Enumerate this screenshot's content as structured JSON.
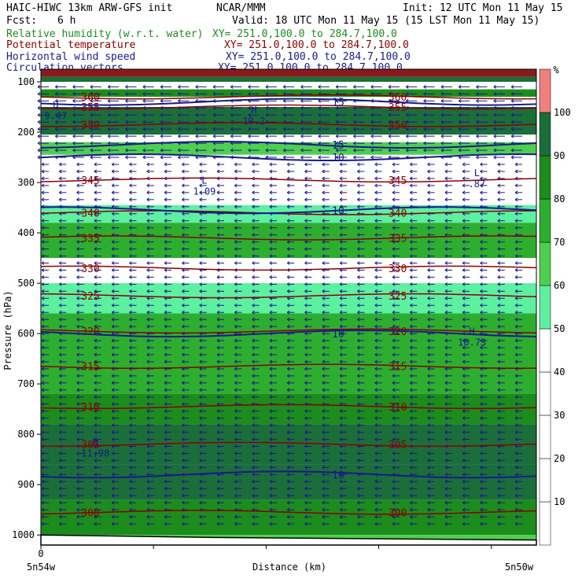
{
  "header": {
    "model_line": "HAIC-HIWC 13km ARW-GFS init",
    "org": "NCAR/MMM",
    "init": "Init: 12 UTC Mon 11 May 15",
    "fcst_label": "Fcst:",
    "fcst_value": "6 h",
    "valid": "Valid: 18 UTC Mon 11 May 15 (15 LST Mon 11 May 15)"
  },
  "fields": [
    {
      "name": "Relative humidity (w.r.t. water)",
      "xy": "XY= 251.0,100.0 to 284.7,100.0",
      "color": "#1f8c1f"
    },
    {
      "name": "Potential temperature",
      "xy": "XY= 251.0,100.0 to 284.7,100.0",
      "color": "#8b0000"
    },
    {
      "name": "Horizontal wind speed",
      "xy": "XY= 251.0,100.0 to 284.7,100.0",
      "color": "#1a1a8c"
    },
    {
      "name": "Circulation vectors",
      "xy": "XY= 251.0,100.0 to 284.7,100.0",
      "color": "#1a1a8c"
    }
  ],
  "colors": {
    "theta": "#8b0000",
    "wind": "#1a1a8c",
    "vectors": "#1a1a8c",
    "rh_levels": [
      "#ffffff",
      "#ffffff",
      "#ffffff",
      "#ffffff",
      "#ffffff",
      "#5cf0a0",
      "#4ed04e",
      "#2eae2e",
      "#1c8c1c",
      "#1b6e3a",
      "#f08080",
      "#8b1a1a"
    ]
  },
  "chart_data": {
    "type": "heatmap",
    "xlabel": "Distance (km)",
    "ylabel": "Pressure (hPa)",
    "x_start_label": "5n54w",
    "x_end_label": "5n50w",
    "x_zero_label": "0",
    "yticks": [
      100,
      200,
      300,
      400,
      500,
      600,
      700,
      800,
      900,
      1000
    ],
    "ylim": [
      1020,
      75
    ],
    "colorbar": {
      "unit": "%",
      "ticks": [
        10,
        20,
        30,
        40,
        50,
        60,
        70,
        80,
        90,
        100
      ]
    },
    "rh_bands": [
      {
        "p_top": 75,
        "p_bottom": 90,
        "rh": 110
      },
      {
        "p_top": 90,
        "p_bottom": 100,
        "rh": 95
      },
      {
        "p_top": 100,
        "p_bottom": 115,
        "rh": 45
      },
      {
        "p_top": 115,
        "p_bottom": 130,
        "rh": 80
      },
      {
        "p_top": 130,
        "p_bottom": 150,
        "rh": 45
      },
      {
        "p_top": 150,
        "p_bottom": 205,
        "rh": 95
      },
      {
        "p_top": 205,
        "p_bottom": 220,
        "rh": 45
      },
      {
        "p_top": 220,
        "p_bottom": 245,
        "rh": 60
      },
      {
        "p_top": 245,
        "p_bottom": 345,
        "rh": 30
      },
      {
        "p_top": 345,
        "p_bottom": 380,
        "rh": 55
      },
      {
        "p_top": 380,
        "p_bottom": 450,
        "rh": 70
      },
      {
        "p_top": 450,
        "p_bottom": 500,
        "rh": 35
      },
      {
        "p_top": 500,
        "p_bottom": 560,
        "rh": 55
      },
      {
        "p_top": 560,
        "p_bottom": 720,
        "rh": 70
      },
      {
        "p_top": 720,
        "p_bottom": 780,
        "rh": 80
      },
      {
        "p_top": 780,
        "p_bottom": 860,
        "rh": 90
      },
      {
        "p_top": 860,
        "p_bottom": 930,
        "rh": 95
      },
      {
        "p_top": 930,
        "p_bottom": 1000,
        "rh": 80
      },
      {
        "p_top": 1000,
        "p_bottom": 1020,
        "rh": 65
      }
    ],
    "theta_contours": [
      {
        "value": 360,
        "p": 130
      },
      {
        "value": 355,
        "p": 150
      },
      {
        "value": 350,
        "p": 185
      },
      {
        "value": 345,
        "p": 295
      },
      {
        "value": 340,
        "p": 360
      },
      {
        "value": 335,
        "p": 410
      },
      {
        "value": 330,
        "p": 470
      },
      {
        "value": 325,
        "p": 525
      },
      {
        "value": 320,
        "p": 595
      },
      {
        "value": 315,
        "p": 665
      },
      {
        "value": 310,
        "p": 745
      },
      {
        "value": 305,
        "p": 820
      },
      {
        "value": 300,
        "p": 955
      }
    ],
    "wind_contours": [
      {
        "value": 15,
        "p": 140
      },
      {
        "value": 15,
        "p": 225
      },
      {
        "value": 10,
        "p": 250
      },
      {
        "value": 10,
        "p": 355
      },
      {
        "value": 10,
        "p": 600
      },
      {
        "value": 10,
        "p": 880
      }
    ],
    "extrema": [
      {
        "type": "H",
        "value": "9.47",
        "x_frac": 0.03,
        "p": 165
      },
      {
        "type": "H",
        "value": "19.2",
        "x_frac": 0.43,
        "p": 175
      },
      {
        "type": "L",
        "value": "1.09",
        "x_frac": 0.33,
        "p": 315
      },
      {
        "type": "L",
        "value": ".87",
        "x_frac": 0.88,
        "p": 300
      },
      {
        "type": "H",
        "value": "10.73",
        "x_frac": 0.87,
        "p": 615
      },
      {
        "type": "H",
        "value": "11.98",
        "x_frac": 0.11,
        "p": 835
      }
    ]
  }
}
